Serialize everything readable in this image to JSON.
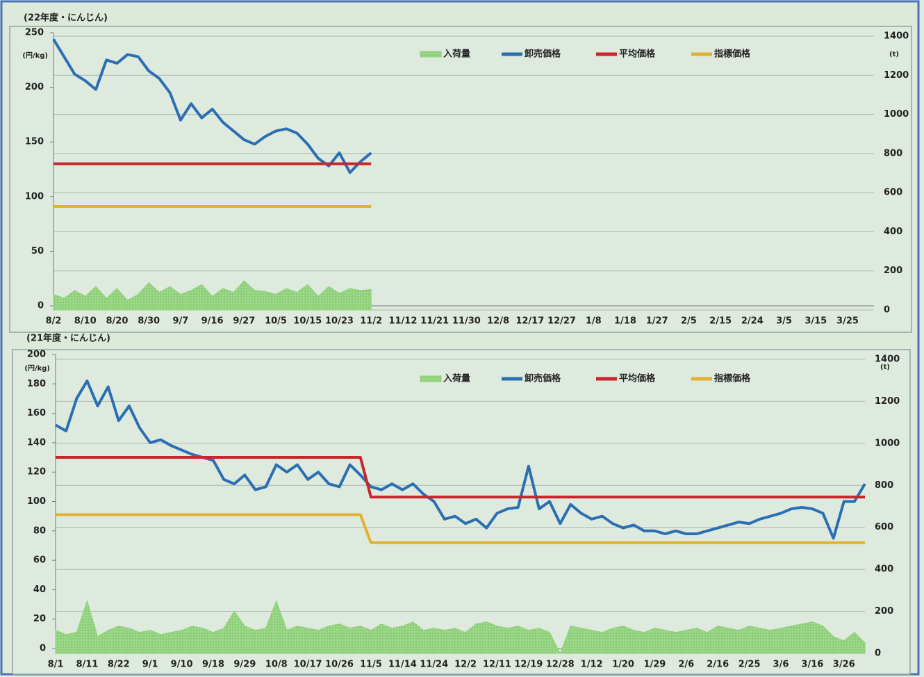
{
  "chart_data": [
    {
      "type": "line",
      "title": "(22年度・にんじん)",
      "y_label": "(円/kg)",
      "y2_label": "(t)",
      "ylim": [
        0,
        250
      ],
      "yticks": [
        0,
        50,
        100,
        150,
        200,
        250
      ],
      "y2lim": [
        0,
        1400
      ],
      "y2ticks": [
        0,
        200,
        400,
        600,
        800,
        1000,
        1200,
        1400
      ],
      "grid_axis": "y2",
      "categories": [
        "8/2",
        null,
        null,
        "8/10",
        null,
        null,
        "8/20",
        null,
        null,
        "8/30",
        null,
        null,
        "9/7",
        null,
        null,
        "9/16",
        null,
        null,
        "9/27",
        null,
        null,
        "10/5",
        null,
        null,
        "10/15",
        null,
        null,
        "10/23",
        null,
        null,
        "11/2",
        null,
        null,
        "11/12",
        null,
        null,
        "11/21",
        null,
        null,
        "11/30",
        null,
        null,
        "12/8",
        null,
        null,
        "12/17",
        null,
        null,
        "12/27",
        null,
        null,
        "1/8",
        null,
        null,
        "1/18",
        null,
        null,
        "1/27",
        null,
        null,
        "2/5",
        null,
        null,
        "2/15",
        null,
        null,
        "2/24",
        null,
        null,
        "3/5",
        null,
        null,
        "3/15",
        null,
        null,
        "3/25",
        null,
        null
      ],
      "series": [
        {
          "name": "入荷量",
          "style": "area",
          "axis": "y2",
          "color": "#8fd07a",
          "values": [
            80,
            60,
            100,
            70,
            120,
            60,
            110,
            50,
            80,
            140,
            90,
            120,
            80,
            100,
            130,
            70,
            110,
            90,
            150,
            100,
            95,
            80,
            110,
            90,
            130,
            70,
            120,
            85,
            110,
            100,
            105,
            null,
            null,
            null,
            null,
            null,
            null,
            null,
            null,
            null,
            null,
            null,
            null,
            null,
            null,
            null,
            null,
            null,
            null,
            null,
            null,
            null,
            null,
            null,
            null,
            null,
            null,
            null,
            null,
            null,
            null,
            null,
            null,
            null,
            null,
            null,
            null,
            null,
            null,
            null,
            null,
            null,
            null,
            null,
            null,
            null,
            null,
            null
          ]
        },
        {
          "name": "卸売価格",
          "style": "line",
          "color": "#2b6fb3",
          "values": [
            244,
            228,
            212,
            206,
            198,
            225,
            222,
            230,
            228,
            215,
            208,
            195,
            170,
            185,
            172,
            180,
            168,
            160,
            152,
            148,
            155,
            160,
            162,
            158,
            148,
            135,
            128,
            140,
            122,
            132,
            140,
            null,
            null,
            null,
            null,
            null,
            null,
            null,
            null,
            null,
            null,
            null,
            null,
            null,
            null,
            null,
            null,
            null,
            null,
            null,
            null,
            null,
            null,
            null,
            null,
            null,
            null,
            null,
            null,
            null,
            null,
            null,
            null,
            null,
            null,
            null,
            null,
            null,
            null,
            null,
            null,
            null,
            null,
            null,
            null,
            null,
            null,
            null
          ]
        },
        {
          "name": "平均価格",
          "style": "line",
          "color": "#c8262c",
          "values": [
            130,
            130,
            130,
            130,
            130,
            130,
            130,
            130,
            130,
            130,
            130,
            130,
            130,
            130,
            130,
            130,
            130,
            130,
            130,
            130,
            130,
            130,
            130,
            130,
            130,
            130,
            130,
            130,
            130,
            130,
            130,
            null,
            null,
            null,
            null,
            null,
            null,
            null,
            null,
            null,
            null,
            null,
            null,
            null,
            null,
            null,
            null,
            null,
            null,
            null,
            null,
            null,
            null,
            null,
            null,
            null,
            null,
            null,
            null,
            null,
            null,
            null,
            null,
            null,
            null,
            null,
            null,
            null,
            null,
            null,
            null,
            null,
            null,
            null,
            null,
            null,
            null,
            null
          ]
        },
        {
          "name": "指標価格",
          "style": "line",
          "color": "#e2b22f",
          "values": [
            91,
            91,
            91,
            91,
            91,
            91,
            91,
            91,
            91,
            91,
            91,
            91,
            91,
            91,
            91,
            91,
            91,
            91,
            91,
            91,
            91,
            91,
            91,
            91,
            91,
            91,
            91,
            91,
            91,
            91,
            91,
            null,
            null,
            null,
            null,
            null,
            null,
            null,
            null,
            null,
            null,
            null,
            null,
            null,
            null,
            null,
            null,
            null,
            null,
            null,
            null,
            null,
            null,
            null,
            null,
            null,
            null,
            null,
            null,
            null,
            null,
            null,
            null,
            null,
            null,
            null,
            null,
            null,
            null,
            null,
            null,
            null,
            null,
            null,
            null,
            null,
            null,
            null
          ]
        }
      ]
    },
    {
      "type": "line",
      "title": "(21年度・にんじん)",
      "y_label": "(円/kg)",
      "y2_label": "(t)",
      "ylim": [
        0,
        200
      ],
      "yticks": [
        0,
        20,
        40,
        60,
        80,
        100,
        120,
        140,
        160,
        180,
        200
      ],
      "y2lim": [
        0,
        1400
      ],
      "y2ticks": [
        0,
        200,
        400,
        600,
        800,
        1000,
        1200,
        1400
      ],
      "grid_axis": "y2",
      "categories": [
        "8/1",
        null,
        null,
        "8/11",
        null,
        null,
        "8/22",
        null,
        null,
        "9/1",
        null,
        null,
        "9/10",
        null,
        null,
        "9/18",
        null,
        null,
        "9/29",
        null,
        null,
        "10/8",
        null,
        null,
        "10/17",
        null,
        null,
        "10/26",
        null,
        null,
        "11/5",
        null,
        null,
        "11/14",
        null,
        null,
        "11/24",
        null,
        null,
        "12/2",
        null,
        null,
        "12/11",
        null,
        null,
        "12/19",
        null,
        null,
        "12/28",
        null,
        null,
        "1/12",
        null,
        null,
        "1/20",
        null,
        null,
        "1/29",
        null,
        null,
        "2/6",
        null,
        null,
        "2/16",
        null,
        null,
        "2/25",
        null,
        null,
        "3/6",
        null,
        null,
        "3/16",
        null,
        null,
        "3/26",
        null,
        null
      ],
      "series": [
        {
          "name": "入荷量",
          "style": "area",
          "axis": "y2",
          "color": "#8fd07a",
          "values": [
            110,
            90,
            100,
            250,
            80,
            110,
            130,
            120,
            100,
            110,
            90,
            100,
            110,
            130,
            120,
            100,
            120,
            200,
            130,
            110,
            120,
            250,
            110,
            130,
            120,
            110,
            130,
            140,
            120,
            130,
            110,
            140,
            120,
            130,
            150,
            110,
            120,
            110,
            120,
            100,
            140,
            150,
            130,
            120,
            130,
            110,
            120,
            100,
            0,
            130,
            120,
            110,
            100,
            120,
            130,
            110,
            100,
            120,
            110,
            100,
            110,
            120,
            100,
            130,
            120,
            110,
            130,
            120,
            110,
            120,
            130,
            140,
            150,
            130,
            80,
            60,
            100,
            50
          ]
        },
        {
          "name": "卸売価格",
          "style": "line",
          "color": "#2b6fb3",
          "values": [
            152,
            148,
            170,
            182,
            165,
            178,
            155,
            165,
            150,
            140,
            142,
            138,
            135,
            132,
            130,
            128,
            115,
            112,
            118,
            108,
            110,
            125,
            120,
            125,
            115,
            120,
            112,
            110,
            125,
            118,
            110,
            108,
            112,
            108,
            112,
            105,
            100,
            88,
            90,
            85,
            88,
            82,
            92,
            95,
            96,
            124,
            95,
            100,
            85,
            98,
            92,
            88,
            90,
            85,
            82,
            84,
            80,
            80,
            78,
            80,
            78,
            78,
            80,
            82,
            84,
            86,
            85,
            88,
            90,
            92,
            95,
            96,
            95,
            92,
            75,
            100,
            100,
            112
          ]
        },
        {
          "name": "平均価格",
          "style": "line",
          "color": "#c8262c",
          "values": [
            130,
            130,
            130,
            130,
            130,
            130,
            130,
            130,
            130,
            130,
            130,
            130,
            130,
            130,
            130,
            130,
            130,
            130,
            130,
            130,
            130,
            130,
            130,
            130,
            130,
            130,
            130,
            130,
            130,
            130,
            103,
            103,
            103,
            103,
            103,
            103,
            103,
            103,
            103,
            103,
            103,
            103,
            103,
            103,
            103,
            103,
            103,
            103,
            103,
            103,
            103,
            103,
            103,
            103,
            103,
            103,
            103,
            103,
            103,
            103,
            103,
            103,
            103,
            103,
            103,
            103,
            103,
            103,
            103,
            103,
            103,
            103,
            103,
            103,
            103,
            103,
            103,
            103
          ]
        },
        {
          "name": "指標価格",
          "style": "line",
          "color": "#e2b22f",
          "values": [
            91,
            91,
            91,
            91,
            91,
            91,
            91,
            91,
            91,
            91,
            91,
            91,
            91,
            91,
            91,
            91,
            91,
            91,
            91,
            91,
            91,
            91,
            91,
            91,
            91,
            91,
            91,
            91,
            91,
            91,
            72,
            72,
            72,
            72,
            72,
            72,
            72,
            72,
            72,
            72,
            72,
            72,
            72,
            72,
            72,
            72,
            72,
            72,
            72,
            72,
            72,
            72,
            72,
            72,
            72,
            72,
            72,
            72,
            72,
            72,
            72,
            72,
            72,
            72,
            72,
            72,
            72,
            72,
            72,
            72,
            72,
            72,
            72,
            72,
            72,
            72,
            72,
            72
          ]
        }
      ]
    }
  ]
}
